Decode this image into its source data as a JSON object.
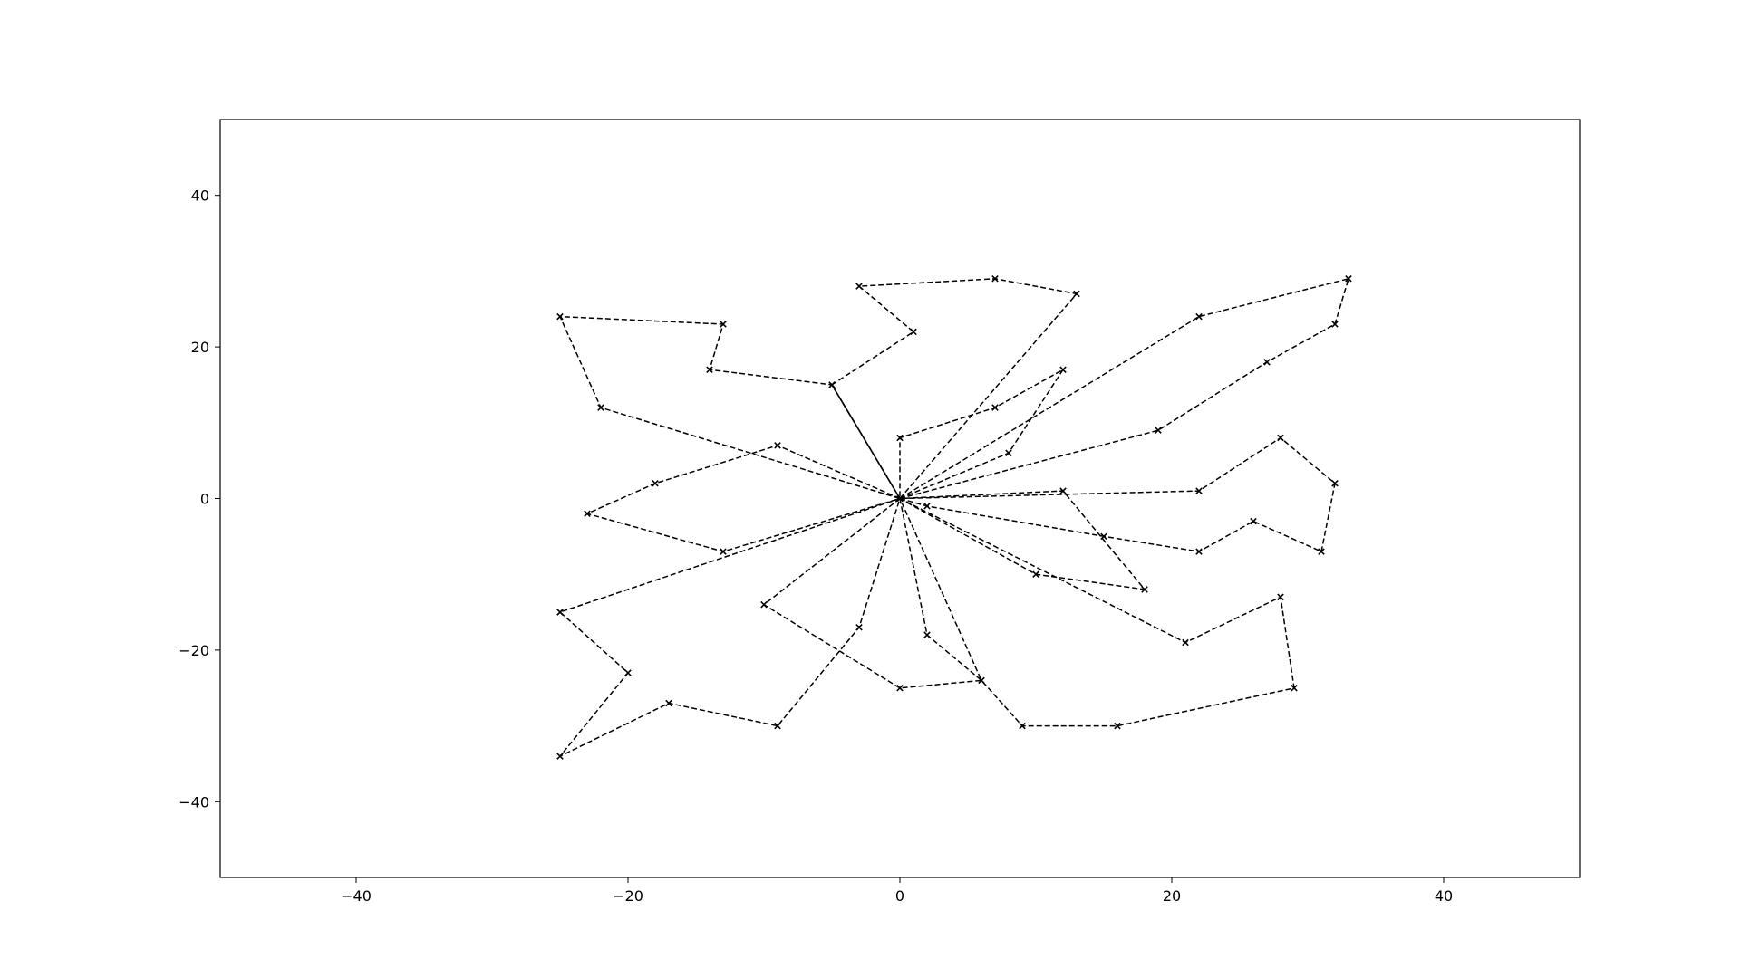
{
  "chart_data": {
    "type": "line",
    "title": "",
    "xlabel": "",
    "ylabel": "",
    "xlim": [
      -50,
      50
    ],
    "ylim": [
      -50,
      50
    ],
    "grid": false,
    "xticks": [
      -40,
      -20,
      0,
      20,
      40
    ],
    "yticks": [
      -40,
      -20,
      0,
      20,
      40
    ],
    "xtick_labels": [
      "−40",
      "−20",
      "0",
      "20",
      "40"
    ],
    "ytick_labels": [
      "−40",
      "−20",
      "0",
      "20",
      "40"
    ],
    "marker": "x",
    "line_color": "#000000",
    "depot": [
      0,
      0
    ],
    "solid_segment": [
      [
        0,
        0
      ],
      [
        -5,
        15
      ]
    ],
    "routes": [
      [
        [
          0,
          0
        ],
        [
          -5,
          15
        ],
        [
          -14,
          17
        ],
        [
          -13,
          23
        ],
        [
          -25,
          24
        ],
        [
          -22,
          12
        ],
        [
          0,
          0
        ]
      ],
      [
        [
          0,
          0
        ],
        [
          -9,
          7
        ],
        [
          -18,
          2
        ],
        [
          -23,
          -2
        ],
        [
          -13,
          -7
        ],
        [
          0,
          0
        ]
      ],
      [
        [
          0,
          0
        ],
        [
          -25,
          -15
        ],
        [
          -20,
          -23
        ],
        [
          -25,
          -34
        ],
        [
          -17,
          -27
        ],
        [
          -9,
          -30
        ],
        [
          -3,
          -17
        ],
        [
          0,
          0
        ]
      ],
      [
        [
          0,
          0
        ],
        [
          -10,
          -14
        ],
        [
          0,
          -25
        ],
        [
          6,
          -24
        ],
        [
          0,
          0
        ]
      ],
      [
        [
          0,
          0
        ],
        [
          2,
          -18
        ],
        [
          6,
          -24
        ],
        [
          9,
          -30
        ],
        [
          16,
          -30
        ],
        [
          29,
          -25
        ],
        [
          28,
          -13
        ],
        [
          21,
          -19
        ],
        [
          0,
          0
        ]
      ],
      [
        [
          0,
          0
        ],
        [
          10,
          -10
        ],
        [
          18,
          -12
        ],
        [
          12,
          1
        ],
        [
          0,
          0
        ]
      ],
      [
        [
          0,
          0
        ],
        [
          2,
          -1
        ],
        [
          15,
          -5
        ],
        [
          22,
          -7
        ],
        [
          26,
          -3
        ],
        [
          31,
          -7
        ],
        [
          32,
          2
        ],
        [
          28,
          8
        ],
        [
          22,
          1
        ],
        [
          0,
          0
        ]
      ],
      [
        [
          0,
          0
        ],
        [
          19,
          9
        ],
        [
          27,
          18
        ],
        [
          32,
          23
        ],
        [
          33,
          29
        ],
        [
          22,
          24
        ],
        [
          0,
          0
        ]
      ],
      [
        [
          0,
          0
        ],
        [
          8,
          6
        ],
        [
          12,
          17
        ],
        [
          7,
          12
        ],
        [
          0,
          8
        ],
        [
          0,
          0
        ]
      ],
      [
        [
          0,
          0
        ],
        [
          13,
          27
        ],
        [
          7,
          29
        ],
        [
          -3,
          28
        ],
        [
          1,
          22
        ],
        [
          -5,
          15
        ]
      ]
    ]
  }
}
